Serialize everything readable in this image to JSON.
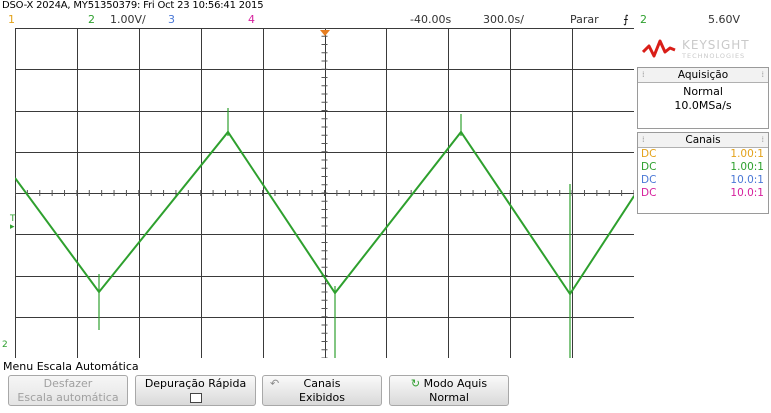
{
  "header": {
    "title": "DSO-X 2024A, MY51350379: Fri Oct 23 10:56:41 2015",
    "ch1_num": "1",
    "ch2_num": "2",
    "ch2_scale": "1.00V/",
    "ch3_num": "3",
    "ch4_num": "4",
    "time_offset": "-40.00s",
    "time_scale": "300.0s/",
    "run_state": "Parar",
    "trigger_channel": "2",
    "trigger_level": "5.60V"
  },
  "brand": {
    "name": "KEYSIGHT",
    "sub": "TECHNOLOGIES"
  },
  "acquisition": {
    "title": "Aquisição",
    "mode": "Normal",
    "rate": "10.0MSa/s"
  },
  "channels": {
    "title": "Canais",
    "rows": [
      {
        "coupling": "DC",
        "probe": "1.00:1",
        "color": "#e3a21a"
      },
      {
        "coupling": "DC",
        "probe": "1.00:1",
        "color": "#2ea02e"
      },
      {
        "coupling": "DC",
        "probe": "10.0:1",
        "color": "#4a78d6"
      },
      {
        "coupling": "DC",
        "probe": "10.0:1",
        "color": "#d61f9d"
      }
    ]
  },
  "markers": {
    "trigger_marker": "T",
    "ground_marker": "2"
  },
  "menu": {
    "title": "Menu Escala Automática",
    "softkeys": [
      {
        "line1": "Desfazer",
        "line2": "Escala automática"
      },
      {
        "line1": "Depuração Rápida"
      },
      {
        "line1": "Canais",
        "line2": "Exibidos"
      },
      {
        "line1": "Modo Aquis",
        "line2": "Normal"
      }
    ]
  },
  "colors": {
    "trace": "#2ea02e",
    "grid": "#3a3a3a",
    "ch1": "#e3a21a",
    "ch2": "#2ea02e",
    "ch3": "#4a78d6",
    "ch4": "#d61f9d"
  },
  "trace_shape": "triangle-wave"
}
